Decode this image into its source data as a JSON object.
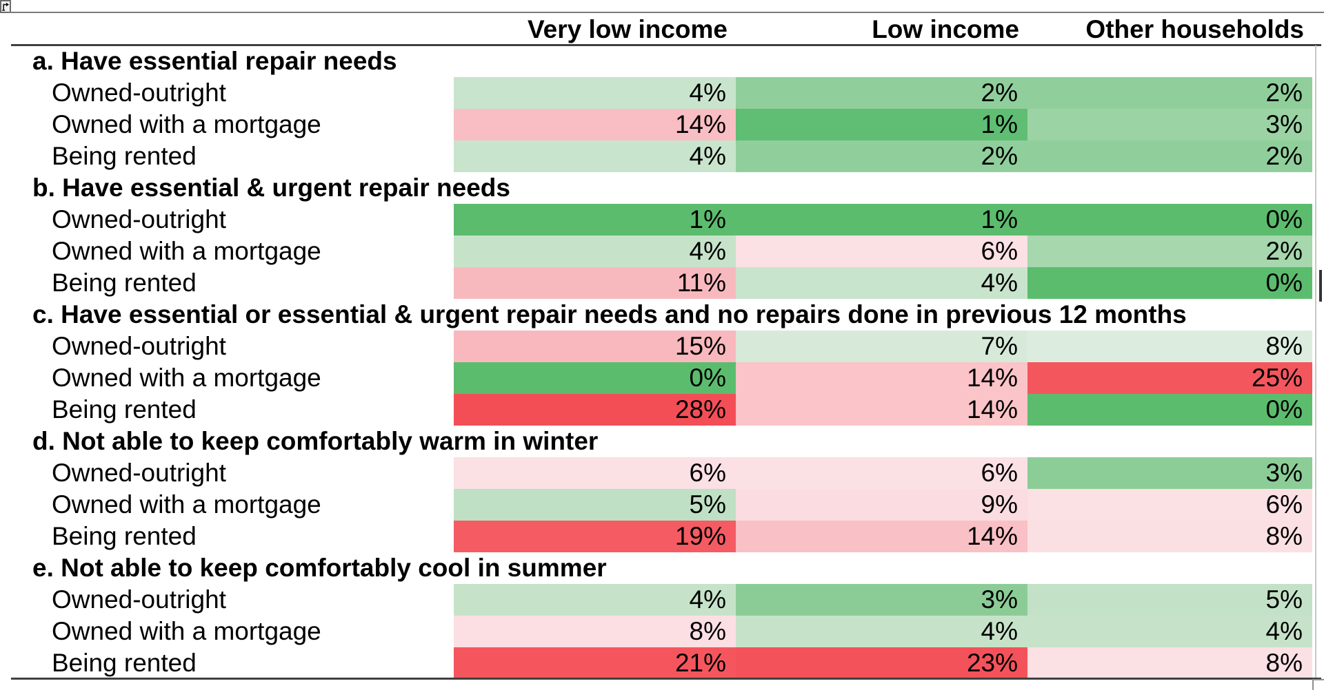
{
  "chrome": {
    "corner_icon": "bent-arrow-icon",
    "accent_border_color": "#3f3f3f",
    "thin_rule_color": "#7a7a7a"
  },
  "table": {
    "columns": [
      "Very low income",
      "Low income",
      "Other households"
    ],
    "sections": [
      {
        "title": "a. Have essential repair needs",
        "rows": [
          {
            "label": "Owned-outright",
            "cells": [
              {
                "v": "4%",
                "bg": "#C9E4CC"
              },
              {
                "v": "2%",
                "bg": "#90CF9B"
              },
              {
                "v": "2%",
                "bg": "#90CF9B"
              }
            ]
          },
          {
            "label": "Owned with a mortgage",
            "cells": [
              {
                "v": "14%",
                "bg": "#F8BEC3"
              },
              {
                "v": "1%",
                "bg": "#5FBE73"
              },
              {
                "v": "3%",
                "bg": "#9BD3A4"
              }
            ]
          },
          {
            "label": "Being rented",
            "cells": [
              {
                "v": "4%",
                "bg": "#C9E4CC"
              },
              {
                "v": "2%",
                "bg": "#90CF9B"
              },
              {
                "v": "2%",
                "bg": "#90CF9B"
              }
            ]
          }
        ]
      },
      {
        "title": "b. Have essential & urgent repair needs",
        "rows": [
          {
            "label": "Owned-outright",
            "cells": [
              {
                "v": "1%",
                "bg": "#5CBC6E"
              },
              {
                "v": "1%",
                "bg": "#5CBC6E"
              },
              {
                "v": "0%",
                "bg": "#5CBC6E"
              }
            ]
          },
          {
            "label": "Owned with a mortgage",
            "cells": [
              {
                "v": "4%",
                "bg": "#C6E3C9"
              },
              {
                "v": "6%",
                "bg": "#FBE0E4"
              },
              {
                "v": "2%",
                "bg": "#A6D7AD"
              }
            ]
          },
          {
            "label": "Being rented",
            "cells": [
              {
                "v": "11%",
                "bg": "#F8B9BE"
              },
              {
                "v": "4%",
                "bg": "#C9E4CC"
              },
              {
                "v": "0%",
                "bg": "#5CBC6E"
              }
            ]
          }
        ]
      },
      {
        "title": "c. Have essential or essential & urgent repair needs and no repairs done in previous 12 months",
        "rows": [
          {
            "label": "Owned-outright",
            "cells": [
              {
                "v": "15%",
                "bg": "#F8B8BD"
              },
              {
                "v": "7%",
                "bg": "#D7EADA"
              },
              {
                "v": "8%",
                "bg": "#DCEDDF"
              }
            ]
          },
          {
            "label": "Owned with a mortgage",
            "cells": [
              {
                "v": "0%",
                "bg": "#5CBC6E"
              },
              {
                "v": "14%",
                "bg": "#FAC4C8"
              },
              {
                "v": "25%",
                "bg": "#F4565D"
              }
            ]
          },
          {
            "label": "Being rented",
            "cells": [
              {
                "v": "28%",
                "bg": "#F34E56"
              },
              {
                "v": "14%",
                "bg": "#FAC4C8"
              },
              {
                "v": "0%",
                "bg": "#5CBC6E"
              }
            ]
          }
        ]
      },
      {
        "title": "d. Not able to keep comfortably warm in winter",
        "rows": [
          {
            "label": "Owned-outright",
            "cells": [
              {
                "v": "6%",
                "bg": "#FBE0E4"
              },
              {
                "v": "6%",
                "bg": "#FBE0E4"
              },
              {
                "v": "3%",
                "bg": "#8CCD97"
              }
            ]
          },
          {
            "label": "Owned with a mortgage",
            "cells": [
              {
                "v": "5%",
                "bg": "#BFE0C4"
              },
              {
                "v": "9%",
                "bg": "#FBDCE0"
              },
              {
                "v": "6%",
                "bg": "#FBE0E4"
              }
            ]
          },
          {
            "label": "Being rented",
            "cells": [
              {
                "v": "19%",
                "bg": "#F45B63"
              },
              {
                "v": "14%",
                "bg": "#F9C0C5"
              },
              {
                "v": "8%",
                "bg": "#FBE0E3"
              }
            ]
          }
        ]
      },
      {
        "title": "e. Not able to keep comfortably cool in summer",
        "rows": [
          {
            "label": "Owned-outright",
            "cells": [
              {
                "v": "4%",
                "bg": "#C6E3C9"
              },
              {
                "v": "3%",
                "bg": "#8BCC96"
              },
              {
                "v": "5%",
                "bg": "#C3E1C7"
              }
            ]
          },
          {
            "label": "Owned with a mortgage",
            "cells": [
              {
                "v": "8%",
                "bg": "#FBDFE3"
              },
              {
                "v": "4%",
                "bg": "#C6E3C9"
              },
              {
                "v": "4%",
                "bg": "#C6E3C9"
              }
            ]
          },
          {
            "label": "Being rented",
            "cells": [
              {
                "v": "21%",
                "bg": "#F5565E"
              },
              {
                "v": "23%",
                "bg": "#F4525A"
              },
              {
                "v": "8%",
                "bg": "#FBE0E4"
              }
            ]
          }
        ]
      }
    ]
  },
  "chart_data": {
    "type": "heatmap",
    "title": "",
    "columns": [
      "Very low income",
      "Low income",
      "Other households"
    ],
    "value_format": "percent",
    "color_scale": {
      "low_color": "#5CBC6E",
      "mid_color": "#FCFCFF",
      "high_color": "#F3555C",
      "low_value": 0,
      "high_value": 28
    },
    "sections": [
      {
        "title": "a. Have essential repair needs",
        "rows": [
          {
            "label": "Owned-outright",
            "values": [
              4,
              2,
              2
            ]
          },
          {
            "label": "Owned with a mortgage",
            "values": [
              14,
              1,
              3
            ]
          },
          {
            "label": "Being rented",
            "values": [
              4,
              2,
              2
            ]
          }
        ]
      },
      {
        "title": "b. Have essential & urgent repair needs",
        "rows": [
          {
            "label": "Owned-outright",
            "values": [
              1,
              1,
              0
            ]
          },
          {
            "label": "Owned with a mortgage",
            "values": [
              4,
              6,
              2
            ]
          },
          {
            "label": "Being rented",
            "values": [
              11,
              4,
              0
            ]
          }
        ]
      },
      {
        "title": "c. Have essential or essential & urgent repair needs and no repairs done in previous 12 months",
        "rows": [
          {
            "label": "Owned-outright",
            "values": [
              15,
              7,
              8
            ]
          },
          {
            "label": "Owned with a mortgage",
            "values": [
              0,
              14,
              25
            ]
          },
          {
            "label": "Being rented",
            "values": [
              28,
              14,
              0
            ]
          }
        ]
      },
      {
        "title": "d. Not able to keep comfortably warm in winter",
        "rows": [
          {
            "label": "Owned-outright",
            "values": [
              6,
              6,
              3
            ]
          },
          {
            "label": "Owned with a mortgage",
            "values": [
              5,
              9,
              6
            ]
          },
          {
            "label": "Being rented",
            "values": [
              19,
              14,
              8
            ]
          }
        ]
      },
      {
        "title": "e. Not able to keep comfortably cool in summer",
        "rows": [
          {
            "label": "Owned-outright",
            "values": [
              4,
              3,
              5
            ]
          },
          {
            "label": "Owned with a mortgage",
            "values": [
              8,
              4,
              4
            ]
          },
          {
            "label": "Being rented",
            "values": [
              21,
              23,
              8
            ]
          }
        ]
      }
    ]
  }
}
